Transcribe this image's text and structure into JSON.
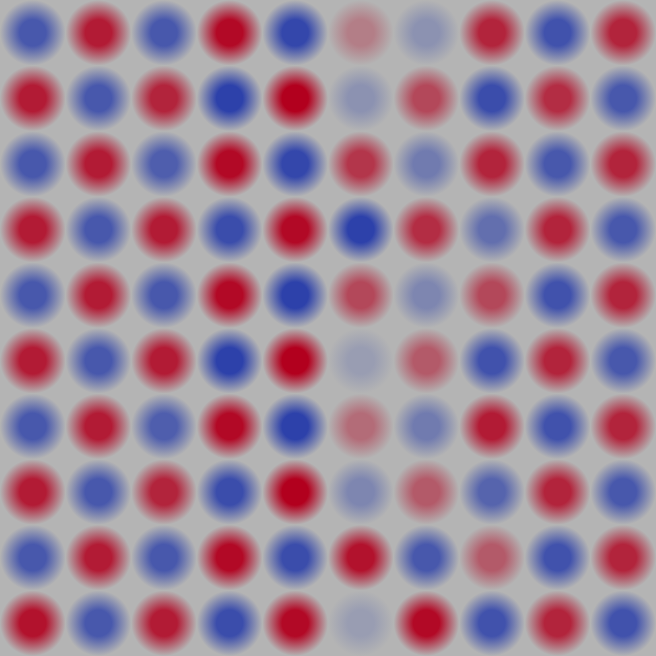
{
  "chart_data": {
    "type": "heatmap",
    "tick_labels": false,
    "xlim": [
      0,
      10
    ],
    "ylim": [
      0,
      10
    ],
    "zlim": [
      -1,
      1
    ],
    "cells": [
      [
        -0.8,
        0.85,
        -0.8,
        0.95,
        -0.95,
        0.3,
        -0.3,
        0.8,
        -0.85,
        0.8
      ],
      [
        0.85,
        -0.8,
        0.8,
        -1,
        1,
        -0.3,
        0.6,
        -0.9,
        0.75,
        -0.8
      ],
      [
        -0.8,
        0.85,
        -0.75,
        0.95,
        -0.95,
        0.7,
        -0.5,
        0.8,
        -0.8,
        0.8
      ],
      [
        0.85,
        -0.8,
        0.85,
        -0.9,
        0.95,
        -1,
        0.75,
        -0.6,
        0.8,
        -0.8
      ],
      [
        -0.8,
        0.85,
        -0.8,
        0.95,
        -1,
        0.6,
        -0.4,
        0.6,
        -0.85,
        0.8
      ],
      [
        0.85,
        -0.8,
        0.85,
        -1,
        1,
        -0.2,
        0.5,
        -0.85,
        0.8,
        -0.8
      ],
      [
        -0.8,
        0.85,
        -0.75,
        0.95,
        -1,
        0.4,
        -0.5,
        0.85,
        -0.85,
        0.8
      ],
      [
        0.85,
        -0.8,
        0.8,
        -0.9,
        1,
        -0.4,
        0.5,
        -0.7,
        0.8,
        -0.8
      ],
      [
        -0.8,
        0.85,
        -0.8,
        0.95,
        -0.9,
        0.9,
        -0.8,
        0.5,
        -0.85,
        0.8
      ],
      [
        0.9,
        -0.8,
        0.85,
        -0.9,
        0.95,
        -0.2,
        0.95,
        -0.85,
        0.8,
        -0.85
      ]
    ]
  }
}
